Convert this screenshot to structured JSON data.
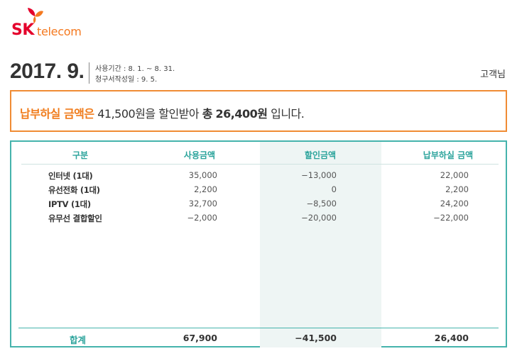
{
  "logo": {
    "brand": "SK",
    "name": "telecom",
    "colors": {
      "red": "#e4002b",
      "orange": "#f47920"
    }
  },
  "header": {
    "bill_month": "2017. 9.",
    "usage_period": "사용기간 : 8. 1. ~ 8. 31.",
    "issue_date": "청구서작성일 : 9. 5.",
    "customer": "고객님"
  },
  "summary": {
    "lead": "납부하실 금액은",
    "discount_text": "41,500원을 할인받아",
    "total_word": "총",
    "total_amount": "26,400원",
    "tail": "입니다."
  },
  "table": {
    "columns": [
      "구분",
      "사용금액",
      "할인금액",
      "납부하실 금액"
    ],
    "rows": [
      {
        "item": "인터넷 (1대)",
        "usage": "35,000",
        "discount": "−13,000",
        "payable": "22,000"
      },
      {
        "item": "유선전화 (1대)",
        "usage": "2,200",
        "discount": "0",
        "payable": "2,200"
      },
      {
        "item": "IPTV (1대)",
        "usage": "32,700",
        "discount": "−8,500",
        "payable": "24,200"
      },
      {
        "item": "유무선 결합할인",
        "usage": "−2,000",
        "discount": "−20,000",
        "payable": "−22,000"
      }
    ],
    "total": {
      "label": "합계",
      "usage": "67,900",
      "discount": "−41,500",
      "payable": "26,400"
    }
  },
  "colors": {
    "accent_orange": "#f08c34",
    "accent_teal": "#45b3ac"
  }
}
